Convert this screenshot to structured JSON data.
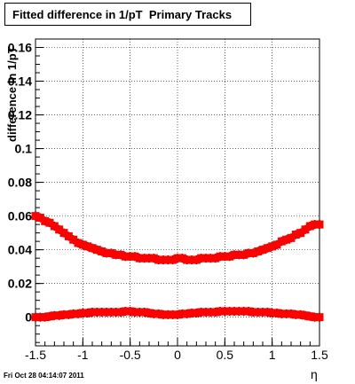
{
  "title": "Fitted difference in 1/pT  Primary Tracks",
  "timestamp": "Fri Oct 28 04:14:07 2011",
  "chart_data": {
    "type": "scatter",
    "xlabel": "η",
    "ylabel": "difference in 1/pT",
    "xlim": [
      -1.5,
      1.5
    ],
    "ylim": [
      -0.017,
      0.165
    ],
    "x_ticks": [
      "-1.5",
      "-1",
      "-0.5",
      "0",
      "0.5",
      "1",
      "1.5"
    ],
    "y_ticks": [
      "0",
      "0.02",
      "0.04",
      "0.06",
      "0.08",
      "0.1",
      "0.12",
      "0.14",
      "0.16"
    ],
    "grid": true,
    "series": [
      {
        "color": "#ff0000",
        "x": [
          -1.5,
          -1.45,
          -1.4,
          -1.35,
          -1.3,
          -1.25,
          -1.2,
          -1.15,
          -1.1,
          -1.05,
          -1.0,
          -0.95,
          -0.9,
          -0.85,
          -0.8,
          -0.75,
          -0.7,
          -0.65,
          -0.6,
          -0.55,
          -0.5,
          -0.45,
          -0.4,
          -0.35,
          -0.3,
          -0.25,
          -0.2,
          -0.15,
          -0.1,
          -0.05,
          0.0,
          0.05,
          0.1,
          0.15,
          0.2,
          0.25,
          0.3,
          0.35,
          0.4,
          0.45,
          0.5,
          0.55,
          0.6,
          0.65,
          0.7,
          0.75,
          0.8,
          0.85,
          0.9,
          0.95,
          1.0,
          1.05,
          1.1,
          1.15,
          1.2,
          1.25,
          1.3,
          1.35,
          1.4,
          1.45,
          1.5
        ],
        "y": [
          0.06,
          0.059,
          0.057,
          0.056,
          0.054,
          0.052,
          0.05,
          0.048,
          0.046,
          0.044,
          0.043,
          0.042,
          0.041,
          0.04,
          0.039,
          0.038,
          0.038,
          0.037,
          0.037,
          0.036,
          0.036,
          0.036,
          0.035,
          0.035,
          0.035,
          0.035,
          0.034,
          0.034,
          0.034,
          0.034,
          0.035,
          0.035,
          0.034,
          0.034,
          0.034,
          0.035,
          0.035,
          0.035,
          0.035,
          0.036,
          0.036,
          0.036,
          0.037,
          0.037,
          0.037,
          0.038,
          0.038,
          0.039,
          0.04,
          0.041,
          0.042,
          0.043,
          0.045,
          0.046,
          0.047,
          0.049,
          0.05,
          0.052,
          0.054,
          0.055,
          0.055
        ]
      },
      {
        "color": "#ff0000",
        "x": [
          -1.5,
          -1.45,
          -1.4,
          -1.35,
          -1.3,
          -1.25,
          -1.2,
          -1.15,
          -1.1,
          -1.05,
          -1.0,
          -0.95,
          -0.9,
          -0.85,
          -0.8,
          -0.75,
          -0.7,
          -0.65,
          -0.6,
          -0.55,
          -0.5,
          -0.45,
          -0.4,
          -0.35,
          -0.3,
          -0.25,
          -0.2,
          -0.15,
          -0.1,
          -0.05,
          0.0,
          0.05,
          0.1,
          0.15,
          0.2,
          0.25,
          0.3,
          0.35,
          0.4,
          0.45,
          0.5,
          0.55,
          0.6,
          0.65,
          0.7,
          0.75,
          0.8,
          0.85,
          0.9,
          0.95,
          1.0,
          1.05,
          1.1,
          1.15,
          1.2,
          1.25,
          1.3,
          1.35,
          1.4,
          1.45,
          1.5
        ],
        "y": [
          0.0,
          0.0,
          0.0,
          0.0005,
          0.001,
          0.001,
          0.0015,
          0.0015,
          0.002,
          0.002,
          0.0025,
          0.0025,
          0.003,
          0.003,
          0.003,
          0.003,
          0.003,
          0.003,
          0.003,
          0.0035,
          0.0035,
          0.003,
          0.003,
          0.003,
          0.0025,
          0.002,
          0.002,
          0.0015,
          0.0015,
          0.0015,
          0.0015,
          0.002,
          0.002,
          0.0025,
          0.0025,
          0.003,
          0.003,
          0.003,
          0.003,
          0.0035,
          0.0035,
          0.0035,
          0.0035,
          0.0035,
          0.0035,
          0.0035,
          0.003,
          0.003,
          0.003,
          0.003,
          0.0025,
          0.0025,
          0.002,
          0.002,
          0.002,
          0.0015,
          0.0015,
          0.001,
          0.0005,
          0.0,
          0.0
        ]
      }
    ]
  }
}
